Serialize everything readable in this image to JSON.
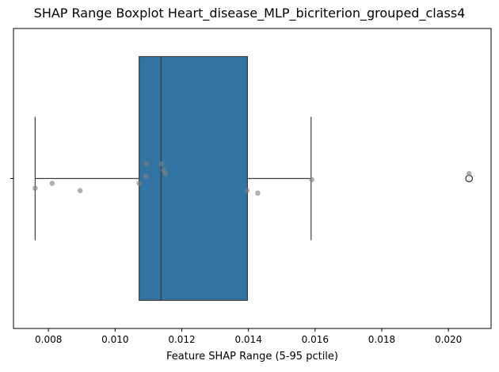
{
  "chart_data": {
    "type": "boxplot",
    "title": "SHAP Range Boxplot Heart_disease_MLP_bicriterion_grouped_class4",
    "xlabel": "Feature SHAP Range (5-95 pctile)",
    "ylabel": "",
    "xlim": [
      0.00695,
      0.02128
    ],
    "xticks": [
      0.008,
      0.01,
      0.012,
      0.014,
      0.016,
      0.018,
      0.02
    ],
    "xtick_labels": [
      "0.008",
      "0.010",
      "0.012",
      "0.014",
      "0.016",
      "0.018",
      "0.020"
    ],
    "grid": false,
    "box": {
      "whisker_low": 0.0076,
      "q1": 0.01072,
      "median": 0.01138,
      "q3": 0.01397,
      "whisker_high": 0.01588,
      "outliers": [
        0.02062
      ]
    },
    "points": [
      {
        "x": 0.0076,
        "jitter": 0.08
      },
      {
        "x": 0.00811,
        "jitter": 0.04
      },
      {
        "x": 0.00895,
        "jitter": 0.1
      },
      {
        "x": 0.01072,
        "jitter": 0.04
      },
      {
        "x": 0.01094,
        "jitter": -0.12
      },
      {
        "x": 0.01092,
        "jitter": -0.02
      },
      {
        "x": 0.01139,
        "jitter": -0.12
      },
      {
        "x": 0.01145,
        "jitter": -0.07
      },
      {
        "x": 0.01151,
        "jitter": -0.04
      },
      {
        "x": 0.01396,
        "jitter": 0.1
      },
      {
        "x": 0.01428,
        "jitter": 0.12
      },
      {
        "x": 0.0159,
        "jitter": 0.01
      },
      {
        "x": 0.02062,
        "jitter": -0.04
      }
    ],
    "colors": {
      "box": "#3274a1",
      "line": "#3d3d3d",
      "point": "#808080"
    }
  }
}
